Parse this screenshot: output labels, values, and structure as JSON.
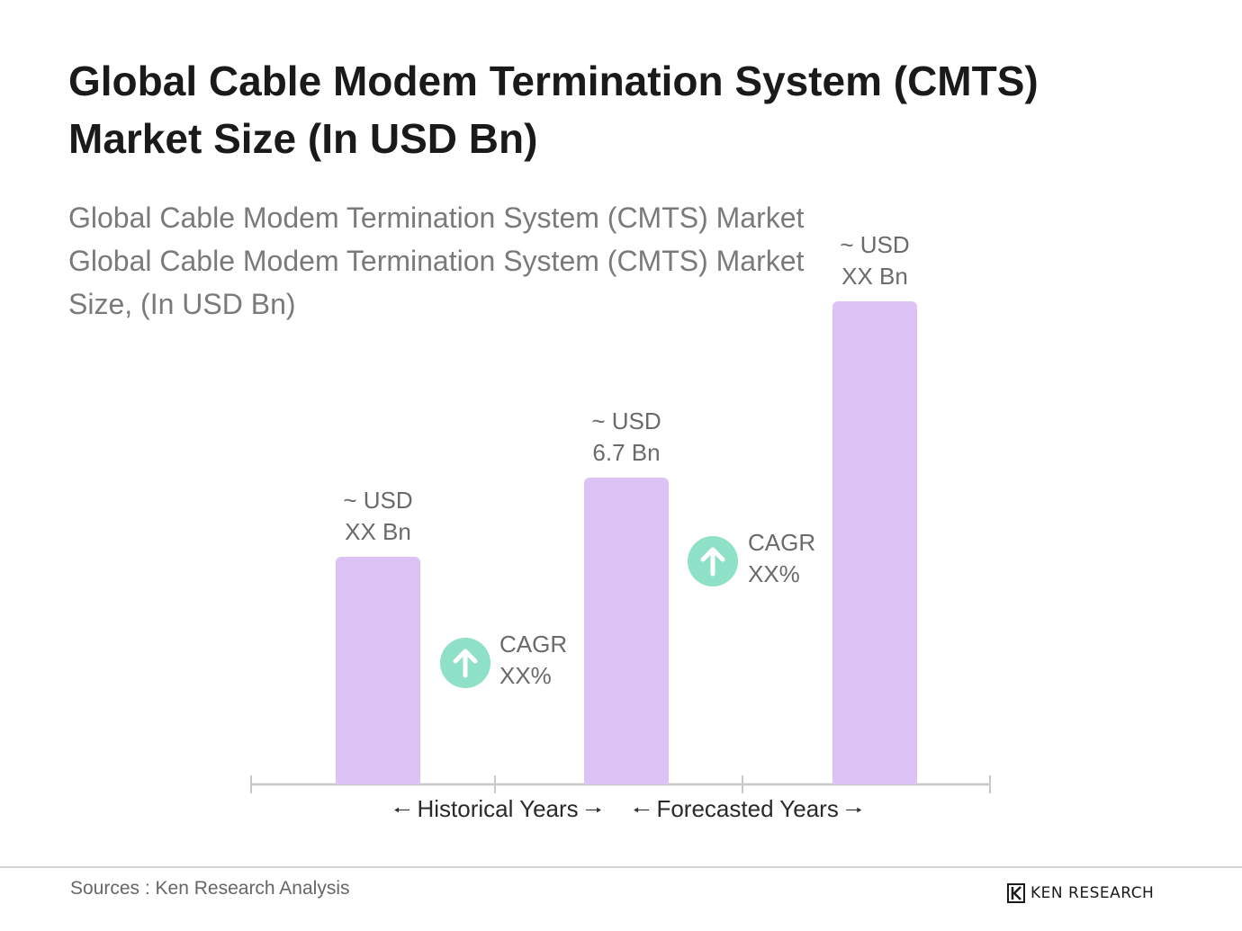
{
  "title": "Global Cable Modem Termination System (CMTS) Market Size (In USD Bn)",
  "subtitle_lines": [
    "Global Cable Modem Termination System (CMTS) Market",
    "Global Cable Modem Termination System (CMTS) Market",
    "Size, (In USD Bn)"
  ],
  "colors": {
    "bar": "#dcc2f5",
    "cagr_circle": "#8ee0c6",
    "axis": "#c8c8c8"
  },
  "chart_data": {
    "type": "bar",
    "title": "Global Cable Modem Termination System (CMTS) Market Size (In USD Bn)",
    "categories": [
      "",
      "",
      ""
    ],
    "bars": [
      {
        "label_lines": [
          "~  USD",
          "XX Bn"
        ],
        "value": 4.0
      },
      {
        "label_lines": [
          "~  USD",
          "6.7 Bn"
        ],
        "value": 5.4
      },
      {
        "label_lines": [
          "~ USD",
          "XX Bn"
        ],
        "value": 8.5
      }
    ],
    "ylim": [
      0,
      8.5
    ],
    "grid": false,
    "legend": "none",
    "cagr": [
      {
        "label": "CAGR",
        "value": "XX%"
      },
      {
        "label": "CAGR",
        "value": "XX%"
      }
    ],
    "periods": [
      "Historical Years",
      "Forecasted Years"
    ]
  },
  "icons": {
    "cagr": "arrow-up-icon",
    "period_left": "arrow-left-icon",
    "period_right": "arrow-right-icon",
    "logo": "ken-research-logo"
  },
  "footer": {
    "source": "Sources : Ken Research Analysis",
    "brand": "KEN RESEARCH"
  }
}
